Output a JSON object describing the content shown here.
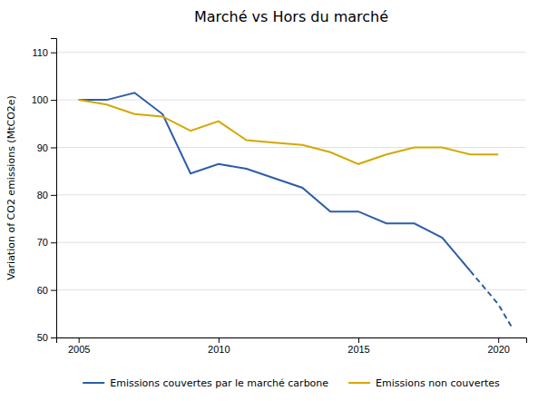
{
  "chart_data": {
    "type": "line",
    "title": "Marché vs Hors du marché",
    "ylabel": "Variation of CO2 emissions (MtCO2e)",
    "xlim": [
      2004.2,
      2021.0
    ],
    "ylim": [
      50,
      113
    ],
    "xticks": [
      2005,
      2010,
      2015,
      2020
    ],
    "yticks": [
      50,
      60,
      70,
      80,
      90,
      100,
      110
    ],
    "grid": true,
    "legend": "bottom",
    "series": [
      {
        "name": "Emissions couvertes par le marché carbone",
        "color": "#2E5DA8",
        "line_style": "solid",
        "x": [
          2005,
          2006,
          2007,
          2008,
          2009,
          2010,
          2011,
          2012,
          2013,
          2014,
          2015,
          2016,
          2017,
          2018,
          2019
        ],
        "values": [
          100,
          100,
          101.5,
          97,
          84.5,
          86.5,
          85.5,
          83.5,
          81.5,
          76.5,
          76.5,
          74,
          74,
          71,
          64
        ]
      },
      {
        "color": "#2E5DA8",
        "line_style": "dashed",
        "x": [
          2019,
          2020,
          2020.5
        ],
        "values": [
          64,
          57,
          52
        ]
      },
      {
        "name": "Emissions non couvertes",
        "color": "#D4A800",
        "line_style": "solid",
        "x": [
          2005,
          2006,
          2007,
          2008,
          2009,
          2010,
          2011,
          2012,
          2013,
          2014,
          2015,
          2016,
          2017,
          2018,
          2019,
          2020
        ],
        "values": [
          100,
          99,
          97,
          96.5,
          93.5,
          95.5,
          91.5,
          91,
          90.5,
          89,
          86.5,
          88.5,
          90,
          90,
          88.5,
          88.5
        ]
      }
    ]
  }
}
